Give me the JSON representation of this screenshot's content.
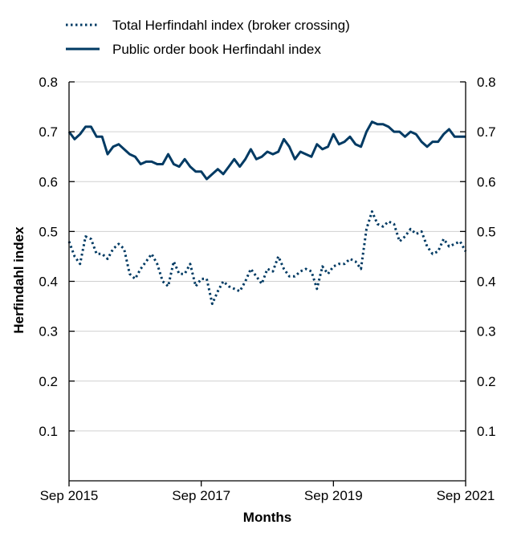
{
  "chart_data": {
    "type": "line",
    "title": "",
    "xlabel": "Months",
    "ylabel": "Herfindahl index",
    "ylim": [
      0,
      0.8
    ],
    "xlim": [
      "2015-09",
      "2021-09"
    ],
    "yticks": [
      0.1,
      0.2,
      0.3,
      0.4,
      0.5,
      0.6,
      0.7,
      0.8
    ],
    "ytick_labels": [
      "0.1",
      "0.2",
      "0.3",
      "0.4",
      "0.5",
      "0.6",
      "0.7",
      "0.8"
    ],
    "xtick_values": [
      "2015-09",
      "2017-09",
      "2019-09",
      "2021-09"
    ],
    "xtick_labels": [
      "Sep 2015",
      "Sep 2017",
      "Sep 2019",
      "Sep 2021"
    ],
    "grid": "horizontal",
    "legend_position": "top-left",
    "y_axis_right_mirror": true,
    "x": [
      "2015-09",
      "2015-10",
      "2015-11",
      "2015-12",
      "2016-01",
      "2016-02",
      "2016-03",
      "2016-04",
      "2016-05",
      "2016-06",
      "2016-07",
      "2016-08",
      "2016-09",
      "2016-10",
      "2016-11",
      "2016-12",
      "2017-01",
      "2017-02",
      "2017-03",
      "2017-04",
      "2017-05",
      "2017-06",
      "2017-07",
      "2017-08",
      "2017-09",
      "2017-10",
      "2017-11",
      "2017-12",
      "2018-01",
      "2018-02",
      "2018-03",
      "2018-04",
      "2018-05",
      "2018-06",
      "2018-07",
      "2018-08",
      "2018-09",
      "2018-10",
      "2018-11",
      "2018-12",
      "2019-01",
      "2019-02",
      "2019-03",
      "2019-04",
      "2019-05",
      "2019-06",
      "2019-07",
      "2019-08",
      "2019-09",
      "2019-10",
      "2019-11",
      "2019-12",
      "2020-01",
      "2020-02",
      "2020-03",
      "2020-04",
      "2020-05",
      "2020-06",
      "2020-07",
      "2020-08",
      "2020-09",
      "2020-10",
      "2020-11",
      "2020-12",
      "2021-01",
      "2021-02",
      "2021-03",
      "2021-04",
      "2021-05",
      "2021-06",
      "2021-07",
      "2021-08",
      "2021-09"
    ],
    "series": [
      {
        "name": "Total Herfindahl index (broker crossing)",
        "style": "dotted",
        "color": "#003a63",
        "values": [
          0.48,
          0.45,
          0.435,
          0.49,
          0.485,
          0.455,
          0.455,
          0.445,
          0.465,
          0.475,
          0.465,
          0.415,
          0.405,
          0.425,
          0.44,
          0.455,
          0.435,
          0.4,
          0.39,
          0.44,
          0.415,
          0.415,
          0.435,
          0.39,
          0.405,
          0.405,
          0.355,
          0.38,
          0.4,
          0.39,
          0.385,
          0.38,
          0.4,
          0.425,
          0.41,
          0.395,
          0.425,
          0.42,
          0.45,
          0.425,
          0.41,
          0.41,
          0.42,
          0.425,
          0.42,
          0.385,
          0.43,
          0.415,
          0.43,
          0.435,
          0.435,
          0.445,
          0.44,
          0.425,
          0.505,
          0.54,
          0.515,
          0.51,
          0.52,
          0.515,
          0.48,
          0.49,
          0.505,
          0.495,
          0.5,
          0.47,
          0.455,
          0.46,
          0.485,
          0.47,
          0.475,
          0.48,
          0.46
        ]
      },
      {
        "name": "Public order book Herfindahl index",
        "style": "solid",
        "color": "#003a63",
        "values": [
          0.7,
          0.685,
          0.695,
          0.71,
          0.71,
          0.69,
          0.69,
          0.655,
          0.67,
          0.675,
          0.665,
          0.655,
          0.65,
          0.635,
          0.64,
          0.64,
          0.635,
          0.635,
          0.655,
          0.635,
          0.63,
          0.645,
          0.63,
          0.62,
          0.62,
          0.605,
          0.615,
          0.625,
          0.615,
          0.63,
          0.645,
          0.63,
          0.645,
          0.665,
          0.645,
          0.65,
          0.66,
          0.655,
          0.66,
          0.685,
          0.67,
          0.645,
          0.66,
          0.655,
          0.65,
          0.675,
          0.665,
          0.67,
          0.695,
          0.675,
          0.68,
          0.69,
          0.675,
          0.67,
          0.7,
          0.72,
          0.715,
          0.715,
          0.71,
          0.7,
          0.7,
          0.69,
          0.7,
          0.695,
          0.68,
          0.67,
          0.68,
          0.68,
          0.695,
          0.705,
          0.69,
          0.69,
          0.69
        ]
      }
    ]
  }
}
